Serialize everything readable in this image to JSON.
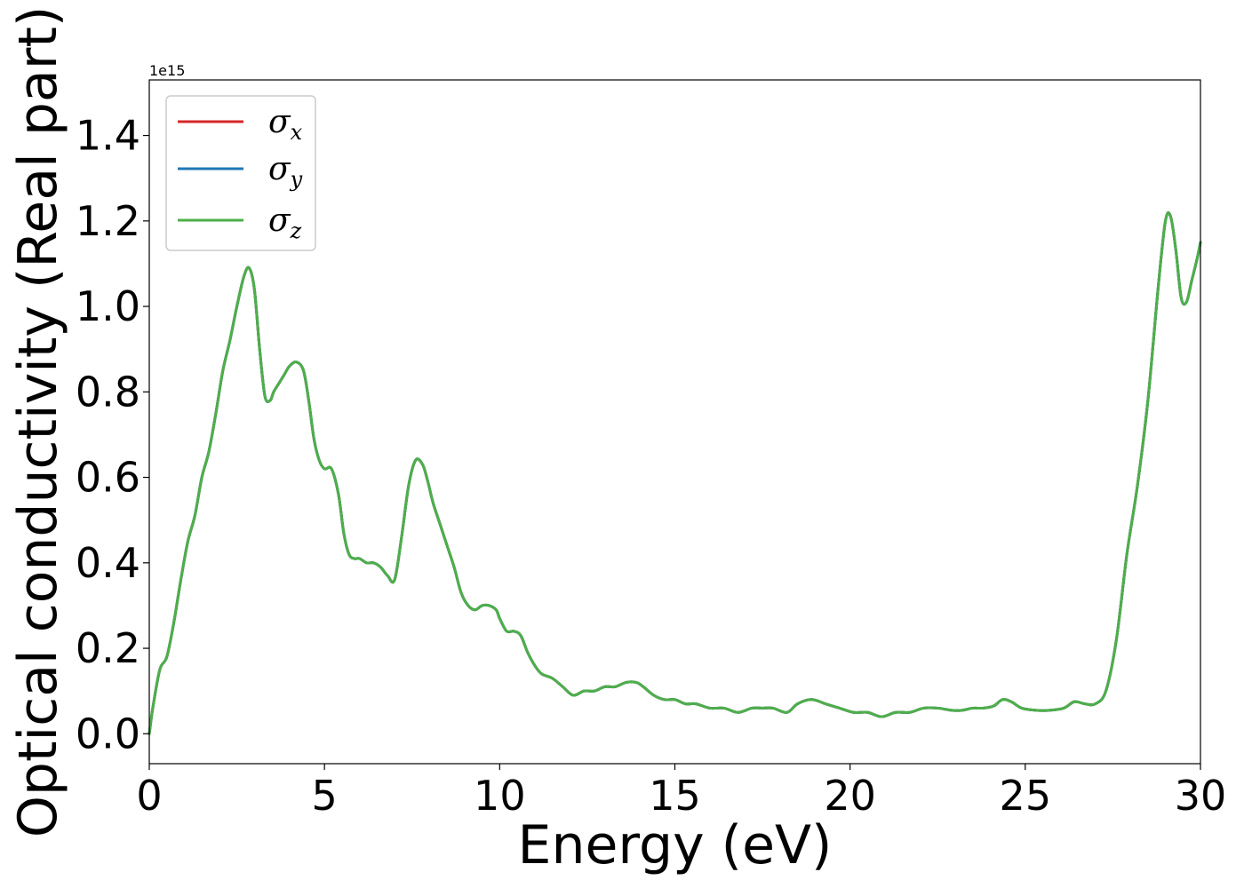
{
  "chart_data": {
    "type": "line",
    "title": "",
    "xlabel": "Energy (eV)",
    "ylabel": "Optical conductivity (Real part)",
    "y_offset_label": "1e15",
    "xlim": [
      0,
      30
    ],
    "ylim": [
      -0.07,
      1.53
    ],
    "xticks": [
      0,
      5,
      10,
      15,
      20,
      25,
      30
    ],
    "xtick_labels": [
      "0",
      "5",
      "10",
      "15",
      "20",
      "25",
      "30"
    ],
    "yticks": [
      0.0,
      0.2,
      0.4,
      0.6,
      0.8,
      1.0,
      1.2,
      1.4
    ],
    "ytick_labels": [
      "0.0",
      "0.2",
      "0.4",
      "0.6",
      "0.8",
      "1.0",
      "1.2",
      "1.4"
    ],
    "grid": false,
    "legend_position": "top-left",
    "series": [
      {
        "name": "σx",
        "symbol": "σ",
        "subscript": "x",
        "color": "#d62728",
        "x": [
          0,
          0.1,
          0.3,
          0.5,
          0.7,
          0.9,
          1.1,
          1.3,
          1.5,
          1.7,
          1.9,
          2.1,
          2.3,
          2.5,
          2.7,
          2.85,
          3.0,
          3.15,
          3.3,
          3.45,
          3.55,
          3.7,
          3.85,
          4.0,
          4.2,
          4.4,
          4.55,
          4.7,
          4.85,
          5.0,
          5.2,
          5.4,
          5.55,
          5.7,
          5.85,
          6.0,
          6.2,
          6.4,
          6.6,
          6.8,
          7.0,
          7.2,
          7.4,
          7.6,
          7.8,
          7.95,
          8.1,
          8.3,
          8.5,
          8.7,
          8.9,
          9.1,
          9.3,
          9.5,
          9.7,
          9.9,
          10.0,
          10.2,
          10.4,
          10.6,
          10.8,
          11.0,
          11.2,
          11.5,
          11.8,
          12.1,
          12.4,
          12.7,
          13.0,
          13.3,
          13.6,
          13.9,
          14.1,
          14.4,
          14.7,
          15.0,
          15.3,
          15.6,
          16.0,
          16.4,
          16.8,
          17.2,
          17.5,
          17.8,
          18.2,
          18.5,
          18.9,
          19.3,
          19.7,
          20.1,
          20.5,
          20.9,
          21.3,
          21.7,
          22.1,
          22.5,
          22.9,
          23.2,
          23.5,
          23.8,
          24.1,
          24.35,
          24.6,
          24.9,
          25.3,
          25.7,
          26.1,
          26.4,
          26.7,
          27.0,
          27.3,
          27.6,
          27.9,
          28.2,
          28.5,
          28.8,
          29.0,
          29.15,
          29.3,
          29.45,
          29.6,
          29.75,
          29.9,
          30.0
        ],
        "values": [
          0.0,
          0.06,
          0.15,
          0.18,
          0.26,
          0.36,
          0.45,
          0.51,
          0.6,
          0.66,
          0.75,
          0.85,
          0.92,
          1.0,
          1.07,
          1.09,
          1.04,
          0.9,
          0.79,
          0.78,
          0.8,
          0.82,
          0.84,
          0.86,
          0.87,
          0.85,
          0.78,
          0.69,
          0.64,
          0.62,
          0.62,
          0.56,
          0.47,
          0.42,
          0.41,
          0.41,
          0.4,
          0.4,
          0.39,
          0.37,
          0.36,
          0.46,
          0.58,
          0.64,
          0.63,
          0.59,
          0.54,
          0.49,
          0.44,
          0.39,
          0.33,
          0.3,
          0.29,
          0.3,
          0.3,
          0.29,
          0.27,
          0.24,
          0.24,
          0.23,
          0.19,
          0.16,
          0.14,
          0.13,
          0.11,
          0.09,
          0.1,
          0.1,
          0.11,
          0.11,
          0.12,
          0.12,
          0.11,
          0.09,
          0.08,
          0.08,
          0.07,
          0.07,
          0.06,
          0.06,
          0.05,
          0.06,
          0.06,
          0.06,
          0.05,
          0.07,
          0.08,
          0.07,
          0.06,
          0.05,
          0.05,
          0.04,
          0.05,
          0.05,
          0.06,
          0.06,
          0.055,
          0.055,
          0.06,
          0.06,
          0.065,
          0.08,
          0.075,
          0.06,
          0.055,
          0.055,
          0.06,
          0.075,
          0.07,
          0.07,
          0.1,
          0.22,
          0.42,
          0.58,
          0.78,
          1.05,
          1.2,
          1.21,
          1.13,
          1.02,
          1.01,
          1.06,
          1.11,
          1.15
        ]
      },
      {
        "name": "σy",
        "symbol": "σ",
        "subscript": "y",
        "color": "#1f77b4",
        "x": [
          0,
          0.1,
          0.3,
          0.5,
          0.7,
          0.9,
          1.1,
          1.3,
          1.5,
          1.7,
          1.9,
          2.1,
          2.3,
          2.5,
          2.7,
          2.85,
          3.0,
          3.15,
          3.3,
          3.45,
          3.55,
          3.7,
          3.85,
          4.0,
          4.2,
          4.4,
          4.55,
          4.7,
          4.85,
          5.0,
          5.2,
          5.4,
          5.55,
          5.7,
          5.85,
          6.0,
          6.2,
          6.4,
          6.6,
          6.8,
          7.0,
          7.2,
          7.4,
          7.6,
          7.8,
          7.95,
          8.1,
          8.3,
          8.5,
          8.7,
          8.9,
          9.1,
          9.3,
          9.5,
          9.7,
          9.9,
          10.0,
          10.2,
          10.4,
          10.6,
          10.8,
          11.0,
          11.2,
          11.5,
          11.8,
          12.1,
          12.4,
          12.7,
          13.0,
          13.3,
          13.6,
          13.9,
          14.1,
          14.4,
          14.7,
          15.0,
          15.3,
          15.6,
          16.0,
          16.4,
          16.8,
          17.2,
          17.5,
          17.8,
          18.2,
          18.5,
          18.9,
          19.3,
          19.7,
          20.1,
          20.5,
          20.9,
          21.3,
          21.7,
          22.1,
          22.5,
          22.9,
          23.2,
          23.5,
          23.8,
          24.1,
          24.35,
          24.6,
          24.9,
          25.3,
          25.7,
          26.1,
          26.4,
          26.7,
          27.0,
          27.3,
          27.6,
          27.9,
          28.2,
          28.5,
          28.8,
          29.0,
          29.15,
          29.3,
          29.45,
          29.6,
          29.75,
          29.9,
          30.0
        ],
        "values": [
          0.0,
          0.06,
          0.15,
          0.18,
          0.26,
          0.36,
          0.45,
          0.51,
          0.6,
          0.66,
          0.75,
          0.85,
          0.92,
          1.0,
          1.07,
          1.09,
          1.04,
          0.9,
          0.79,
          0.78,
          0.8,
          0.82,
          0.84,
          0.86,
          0.87,
          0.85,
          0.78,
          0.69,
          0.64,
          0.62,
          0.62,
          0.56,
          0.47,
          0.42,
          0.41,
          0.41,
          0.4,
          0.4,
          0.39,
          0.37,
          0.36,
          0.46,
          0.58,
          0.64,
          0.63,
          0.59,
          0.54,
          0.49,
          0.44,
          0.39,
          0.33,
          0.3,
          0.29,
          0.3,
          0.3,
          0.29,
          0.27,
          0.24,
          0.24,
          0.23,
          0.19,
          0.16,
          0.14,
          0.13,
          0.11,
          0.09,
          0.1,
          0.1,
          0.11,
          0.11,
          0.12,
          0.12,
          0.11,
          0.09,
          0.08,
          0.08,
          0.07,
          0.07,
          0.06,
          0.06,
          0.05,
          0.06,
          0.06,
          0.06,
          0.05,
          0.07,
          0.08,
          0.07,
          0.06,
          0.05,
          0.05,
          0.04,
          0.05,
          0.05,
          0.06,
          0.06,
          0.055,
          0.055,
          0.06,
          0.06,
          0.065,
          0.08,
          0.075,
          0.06,
          0.055,
          0.055,
          0.06,
          0.075,
          0.07,
          0.07,
          0.1,
          0.22,
          0.42,
          0.58,
          0.78,
          1.05,
          1.2,
          1.21,
          1.13,
          1.02,
          1.01,
          1.06,
          1.11,
          1.15
        ]
      },
      {
        "name": "σz",
        "symbol": "σ",
        "subscript": "z",
        "color": "#4daf4a",
        "x": [
          0,
          0.1,
          0.3,
          0.5,
          0.7,
          0.9,
          1.1,
          1.3,
          1.5,
          1.7,
          1.9,
          2.1,
          2.3,
          2.5,
          2.7,
          2.85,
          3.0,
          3.15,
          3.3,
          3.45,
          3.55,
          3.7,
          3.85,
          4.0,
          4.2,
          4.4,
          4.55,
          4.7,
          4.85,
          5.0,
          5.2,
          5.4,
          5.55,
          5.7,
          5.85,
          6.0,
          6.2,
          6.4,
          6.6,
          6.8,
          7.0,
          7.2,
          7.4,
          7.6,
          7.8,
          7.95,
          8.1,
          8.3,
          8.5,
          8.7,
          8.9,
          9.1,
          9.3,
          9.5,
          9.7,
          9.9,
          10.0,
          10.2,
          10.4,
          10.6,
          10.8,
          11.0,
          11.2,
          11.5,
          11.8,
          12.1,
          12.4,
          12.7,
          13.0,
          13.3,
          13.6,
          13.9,
          14.1,
          14.4,
          14.7,
          15.0,
          15.3,
          15.6,
          16.0,
          16.4,
          16.8,
          17.2,
          17.5,
          17.8,
          18.2,
          18.5,
          18.9,
          19.3,
          19.7,
          20.1,
          20.5,
          20.9,
          21.3,
          21.7,
          22.1,
          22.5,
          22.9,
          23.2,
          23.5,
          23.8,
          24.1,
          24.35,
          24.6,
          24.9,
          25.3,
          25.7,
          26.1,
          26.4,
          26.7,
          27.0,
          27.3,
          27.6,
          27.9,
          28.2,
          28.5,
          28.8,
          29.0,
          29.15,
          29.3,
          29.45,
          29.6,
          29.75,
          29.9,
          30.0
        ],
        "values": [
          0.0,
          0.06,
          0.15,
          0.18,
          0.26,
          0.36,
          0.45,
          0.51,
          0.6,
          0.66,
          0.75,
          0.85,
          0.92,
          1.0,
          1.07,
          1.09,
          1.04,
          0.9,
          0.79,
          0.78,
          0.8,
          0.82,
          0.84,
          0.86,
          0.87,
          0.85,
          0.78,
          0.69,
          0.64,
          0.62,
          0.62,
          0.56,
          0.47,
          0.42,
          0.41,
          0.41,
          0.4,
          0.4,
          0.39,
          0.37,
          0.36,
          0.46,
          0.58,
          0.64,
          0.63,
          0.59,
          0.54,
          0.49,
          0.44,
          0.39,
          0.33,
          0.3,
          0.29,
          0.3,
          0.3,
          0.29,
          0.27,
          0.24,
          0.24,
          0.23,
          0.19,
          0.16,
          0.14,
          0.13,
          0.11,
          0.09,
          0.1,
          0.1,
          0.11,
          0.11,
          0.12,
          0.12,
          0.11,
          0.09,
          0.08,
          0.08,
          0.07,
          0.07,
          0.06,
          0.06,
          0.05,
          0.06,
          0.06,
          0.06,
          0.05,
          0.07,
          0.08,
          0.07,
          0.06,
          0.05,
          0.05,
          0.04,
          0.05,
          0.05,
          0.06,
          0.06,
          0.055,
          0.055,
          0.06,
          0.06,
          0.065,
          0.08,
          0.075,
          0.06,
          0.055,
          0.055,
          0.06,
          0.075,
          0.07,
          0.07,
          0.1,
          0.22,
          0.42,
          0.58,
          0.78,
          1.05,
          1.2,
          1.21,
          1.13,
          1.02,
          1.01,
          1.06,
          1.11,
          1.15
        ]
      }
    ]
  }
}
